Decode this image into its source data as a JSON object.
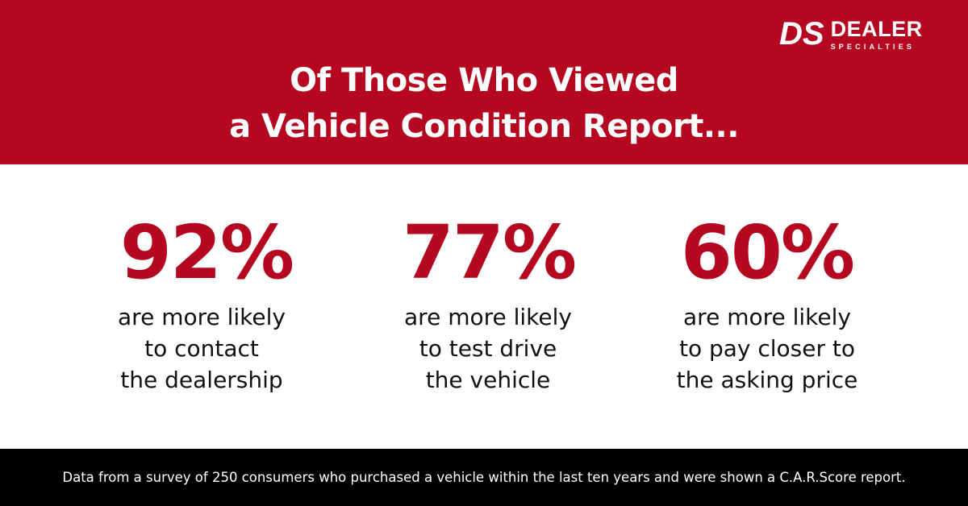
{
  "brand": {
    "logo_mark": "DS",
    "logo_name": "DEALER",
    "logo_sub": "SPECIALTIES",
    "accent": "#b5071f"
  },
  "header": {
    "title_line1": "Of Those Who Viewed",
    "title_line2": "a Vehicle Condition Report..."
  },
  "stats": [
    {
      "value": "92%",
      "lines": [
        "are more likely",
        "to contact",
        "the dealership"
      ]
    },
    {
      "value": "77%",
      "lines": [
        "are more likely",
        "to test drive",
        "the vehicle"
      ]
    },
    {
      "value": "60%",
      "lines": [
        "are more likely",
        "to pay closer to",
        "the asking price"
      ]
    }
  ],
  "footer": {
    "text": "Data from a survey of 250 consumers who purchased a vehicle within the last ten years and were shown a C.A.R.Score report."
  }
}
